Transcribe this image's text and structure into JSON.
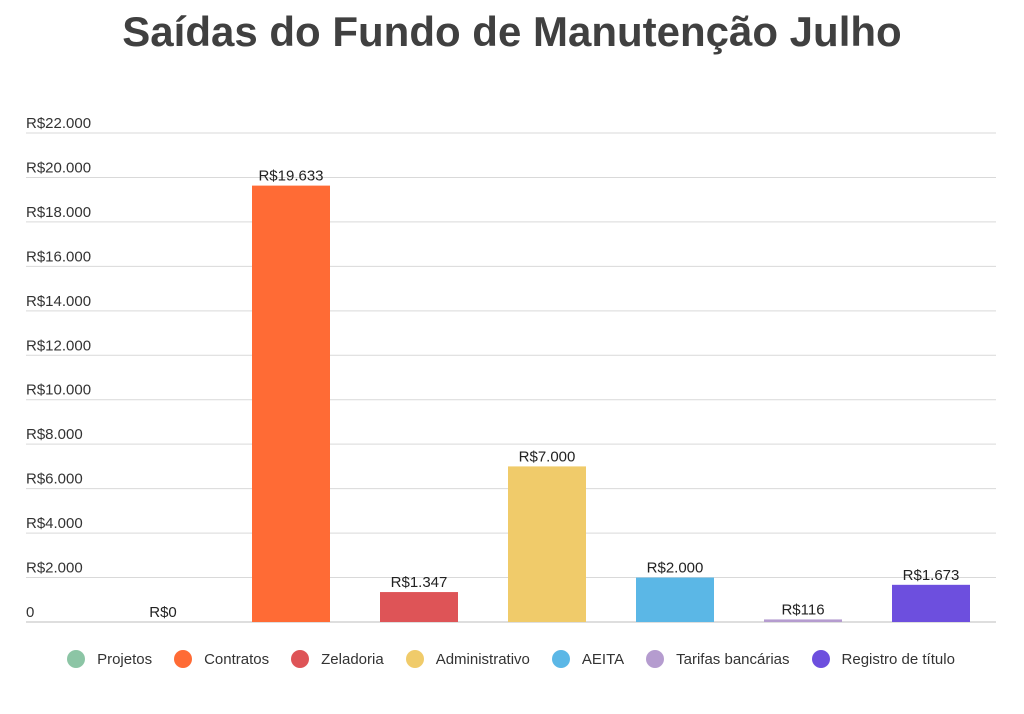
{
  "chart_data": {
    "type": "bar",
    "title": "Saídas do Fundo de Manutenção Julho",
    "categories": [
      "Projetos",
      "Contratos",
      "Zeladoria",
      "Administrativo",
      "AEITA",
      "Tarifas bancárias",
      "Registro de título"
    ],
    "values": [
      0,
      19633,
      1347,
      7000,
      2000,
      116,
      1673
    ],
    "data_labels": [
      "R$0",
      "R$19.633",
      "R$1.347",
      "R$7.000",
      "R$2.000",
      "R$116",
      "R$1.673"
    ],
    "colors": [
      "#8cc5a5",
      "#ff6b35",
      "#de5457",
      "#f0cb6a",
      "#5bb7e6",
      "#b59ccf",
      "#6d4fde"
    ],
    "ylim": [
      0,
      22000
    ],
    "yticks": [
      0,
      2000,
      4000,
      6000,
      8000,
      10000,
      12000,
      14000,
      16000,
      18000,
      20000,
      22000
    ],
    "ytick_labels": [
      "0",
      "R$2.000",
      "R$4.000",
      "R$6.000",
      "R$8.000",
      "R$10.000",
      "R$12.000",
      "R$14.000",
      "R$16.000",
      "R$18.000",
      "R$20.000",
      "R$22.000"
    ],
    "grid": true,
    "legend_position": "bottom"
  }
}
